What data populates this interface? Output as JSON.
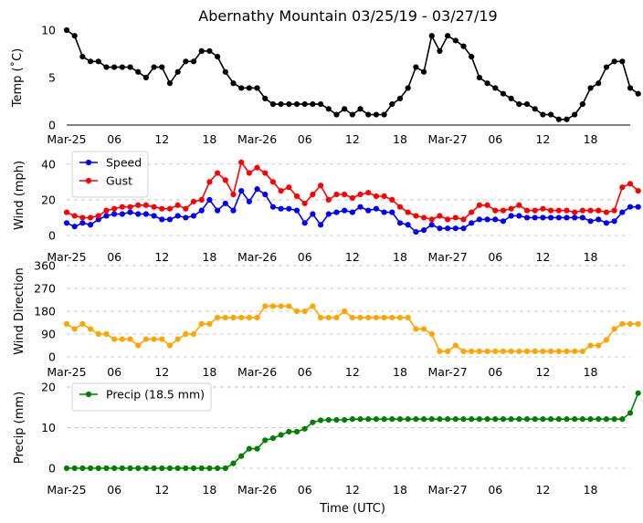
{
  "figure": {
    "title": "Abernathy Mountain 03/25/19 - 03/27/19",
    "xlabel": "Time (UTC)"
  },
  "chart_data": [
    {
      "type": "line",
      "id": "temp",
      "title": "Abernathy Mountain 03/25/19 - 03/27/19",
      "ylabel": "Temp ( $^\\circ$C)",
      "ylabel_display": "Temp (˚C)",
      "ylim": [
        0,
        10
      ],
      "yticks": [
        0,
        5,
        10
      ],
      "grid": false,
      "x_hours_start": 0,
      "x_hours_step": 1,
      "xlim_hours": [
        0,
        71
      ],
      "xtick_hours": [
        0,
        6,
        12,
        18,
        24,
        30,
        36,
        42,
        48,
        54,
        60,
        66
      ],
      "xtick_labels": [
        "Mar-25",
        "06",
        "12",
        "18",
        "Mar-26",
        "06",
        "12",
        "18",
        "Mar-27",
        "06",
        "12",
        "18"
      ],
      "series": [
        {
          "name": "Temp",
          "color": "#000000",
          "values": [
            10,
            9.4,
            7.2,
            6.7,
            6.7,
            6.1,
            6.1,
            6.1,
            6.1,
            5.6,
            5.0,
            6.1,
            6.1,
            4.4,
            5.6,
            6.7,
            6.7,
            7.8,
            7.8,
            7.2,
            5.6,
            4.4,
            3.9,
            3.9,
            3.9,
            2.8,
            2.2,
            2.2,
            2.2,
            2.2,
            2.2,
            2.2,
            2.2,
            1.7,
            1.1,
            1.7,
            1.1,
            1.7,
            1.1,
            1.1,
            1.1,
            2.2,
            2.8,
            3.9,
            6.1,
            5.6,
            9.4,
            7.8,
            9.4,
            8.9,
            8.3,
            7.2,
            5.0,
            4.4,
            3.9,
            3.3,
            2.8,
            2.2,
            2.2,
            1.7,
            1.1,
            1.1,
            0.6,
            0.6,
            1.1,
            2.2,
            3.9,
            4.4,
            6.1,
            6.7,
            6.7,
            3.9,
            3.3
          ]
        }
      ]
    },
    {
      "type": "line",
      "id": "wind",
      "title": "",
      "ylabel": "Wind (mph)",
      "ylim": [
        0,
        45
      ],
      "yticks": [
        0,
        20,
        40
      ],
      "grid": true,
      "legend": "top-left",
      "x_hours_start": 0,
      "x_hours_step": 1,
      "xlim_hours": [
        0,
        71
      ],
      "xtick_hours": [
        0,
        6,
        12,
        18,
        24,
        30,
        36,
        42,
        48,
        54,
        60,
        66
      ],
      "xtick_labels": [
        "Mar-25",
        "06",
        "12",
        "18",
        "Mar-26",
        "06",
        "12",
        "18",
        "Mar-27",
        "06",
        "12",
        "18"
      ],
      "series": [
        {
          "name": "Speed",
          "color": "#0000ff",
          "values": [
            7,
            5,
            7,
            6,
            9,
            11,
            12,
            12,
            13,
            12,
            12,
            11,
            9,
            9,
            11,
            10,
            11,
            14,
            20,
            14,
            18,
            14,
            25,
            19,
            26,
            23,
            16,
            15,
            15,
            14,
            7,
            12,
            6,
            12,
            13,
            14,
            13,
            16,
            14,
            15,
            13,
            13,
            7,
            6,
            2,
            3,
            6,
            4,
            4,
            4,
            4,
            7,
            9,
            9,
            9,
            8,
            11,
            11,
            10,
            10,
            10,
            10,
            10,
            10,
            10,
            10,
            8,
            9,
            7,
            8,
            13,
            16,
            16
          ]
        },
        {
          "name": "Gust",
          "color": "#ff0000",
          "values": [
            13,
            11,
            10,
            10,
            11,
            14,
            15,
            16,
            16,
            17,
            17,
            16,
            15,
            15,
            17,
            15,
            19,
            20,
            30,
            35,
            31,
            23,
            41,
            35,
            38,
            35,
            30,
            25,
            27,
            22,
            18,
            23,
            28,
            20,
            23,
            23,
            21,
            23,
            24,
            22,
            22,
            20,
            16,
            13,
            11,
            10,
            9,
            11,
            9,
            10,
            9,
            13,
            17,
            17,
            14,
            14,
            15,
            17,
            14,
            14,
            15,
            14,
            14,
            14,
            13,
            14,
            14,
            14,
            13,
            14,
            27,
            29,
            25
          ]
        }
      ]
    },
    {
      "type": "line",
      "id": "wind_direction",
      "title": "",
      "ylabel": "Wind Direction",
      "ylim": [
        0,
        360
      ],
      "yticks": [
        0,
        90,
        180,
        270,
        360
      ],
      "grid": true,
      "x_hours_start": 0,
      "x_hours_step": 1,
      "xlim_hours": [
        0,
        71
      ],
      "xtick_hours": [
        0,
        6,
        12,
        18,
        24,
        30,
        36,
        42,
        48,
        54,
        60,
        66
      ],
      "xtick_labels": [
        "Mar-25",
        "06",
        "12",
        "18",
        "Mar-26",
        "06",
        "12",
        "18",
        "Mar-27",
        "06",
        "12",
        "18"
      ],
      "series": [
        {
          "name": "Direction",
          "color": "#ffa500",
          "values": [
            130,
            110,
            130,
            110,
            90,
            90,
            70,
            70,
            70,
            45,
            70,
            70,
            70,
            45,
            70,
            90,
            90,
            130,
            130,
            155,
            155,
            155,
            155,
            155,
            155,
            200,
            200,
            200,
            200,
            180,
            180,
            200,
            155,
            155,
            155,
            180,
            155,
            155,
            155,
            155,
            155,
            155,
            155,
            155,
            110,
            110,
            90,
            22,
            22,
            45,
            22,
            22,
            22,
            22,
            22,
            22,
            22,
            22,
            22,
            22,
            22,
            22,
            22,
            22,
            22,
            22,
            45,
            45,
            67,
            110,
            130,
            130,
            130
          ]
        }
      ]
    },
    {
      "type": "line",
      "id": "precip",
      "title": "",
      "ylabel": "Precip (mm)",
      "xlabel": "Time (UTC)",
      "ylim": [
        0,
        20
      ],
      "yticks": [
        0,
        10,
        20
      ],
      "grid": true,
      "legend": "top-left",
      "x_hours_start": 0,
      "x_hours_step": 1,
      "xlim_hours": [
        0,
        71
      ],
      "xtick_hours": [
        0,
        6,
        12,
        18,
        24,
        30,
        36,
        42,
        48,
        54,
        60,
        66
      ],
      "xtick_labels": [
        "Mar-25",
        "06",
        "12",
        "18",
        "Mar-26",
        "06",
        "12",
        "18",
        "Mar-27",
        "06",
        "12",
        "18"
      ],
      "series": [
        {
          "name": "Precip (18.5 mm)",
          "color": "#008000",
          "values": [
            0,
            0,
            0,
            0,
            0,
            0,
            0,
            0,
            0,
            0,
            0,
            0,
            0,
            0,
            0,
            0,
            0,
            0,
            0,
            0,
            0,
            1.2,
            3.0,
            4.8,
            4.8,
            6.9,
            7.4,
            8.2,
            9.0,
            9.0,
            9.7,
            11.3,
            11.8,
            11.9,
            11.9,
            11.9,
            12.1,
            12.1,
            12.1,
            12.1,
            12.1,
            12.1,
            12.1,
            12.1,
            12.1,
            12.1,
            12.1,
            12.1,
            12.1,
            12.1,
            12.1,
            12.1,
            12.1,
            12.1,
            12.1,
            12.1,
            12.1,
            12.1,
            12.1,
            12.1,
            12.1,
            12.1,
            12.1,
            12.1,
            12.1,
            12.1,
            12.1,
            12.1,
            12.1,
            12.1,
            12.1,
            13.6,
            18.5
          ]
        }
      ]
    }
  ]
}
